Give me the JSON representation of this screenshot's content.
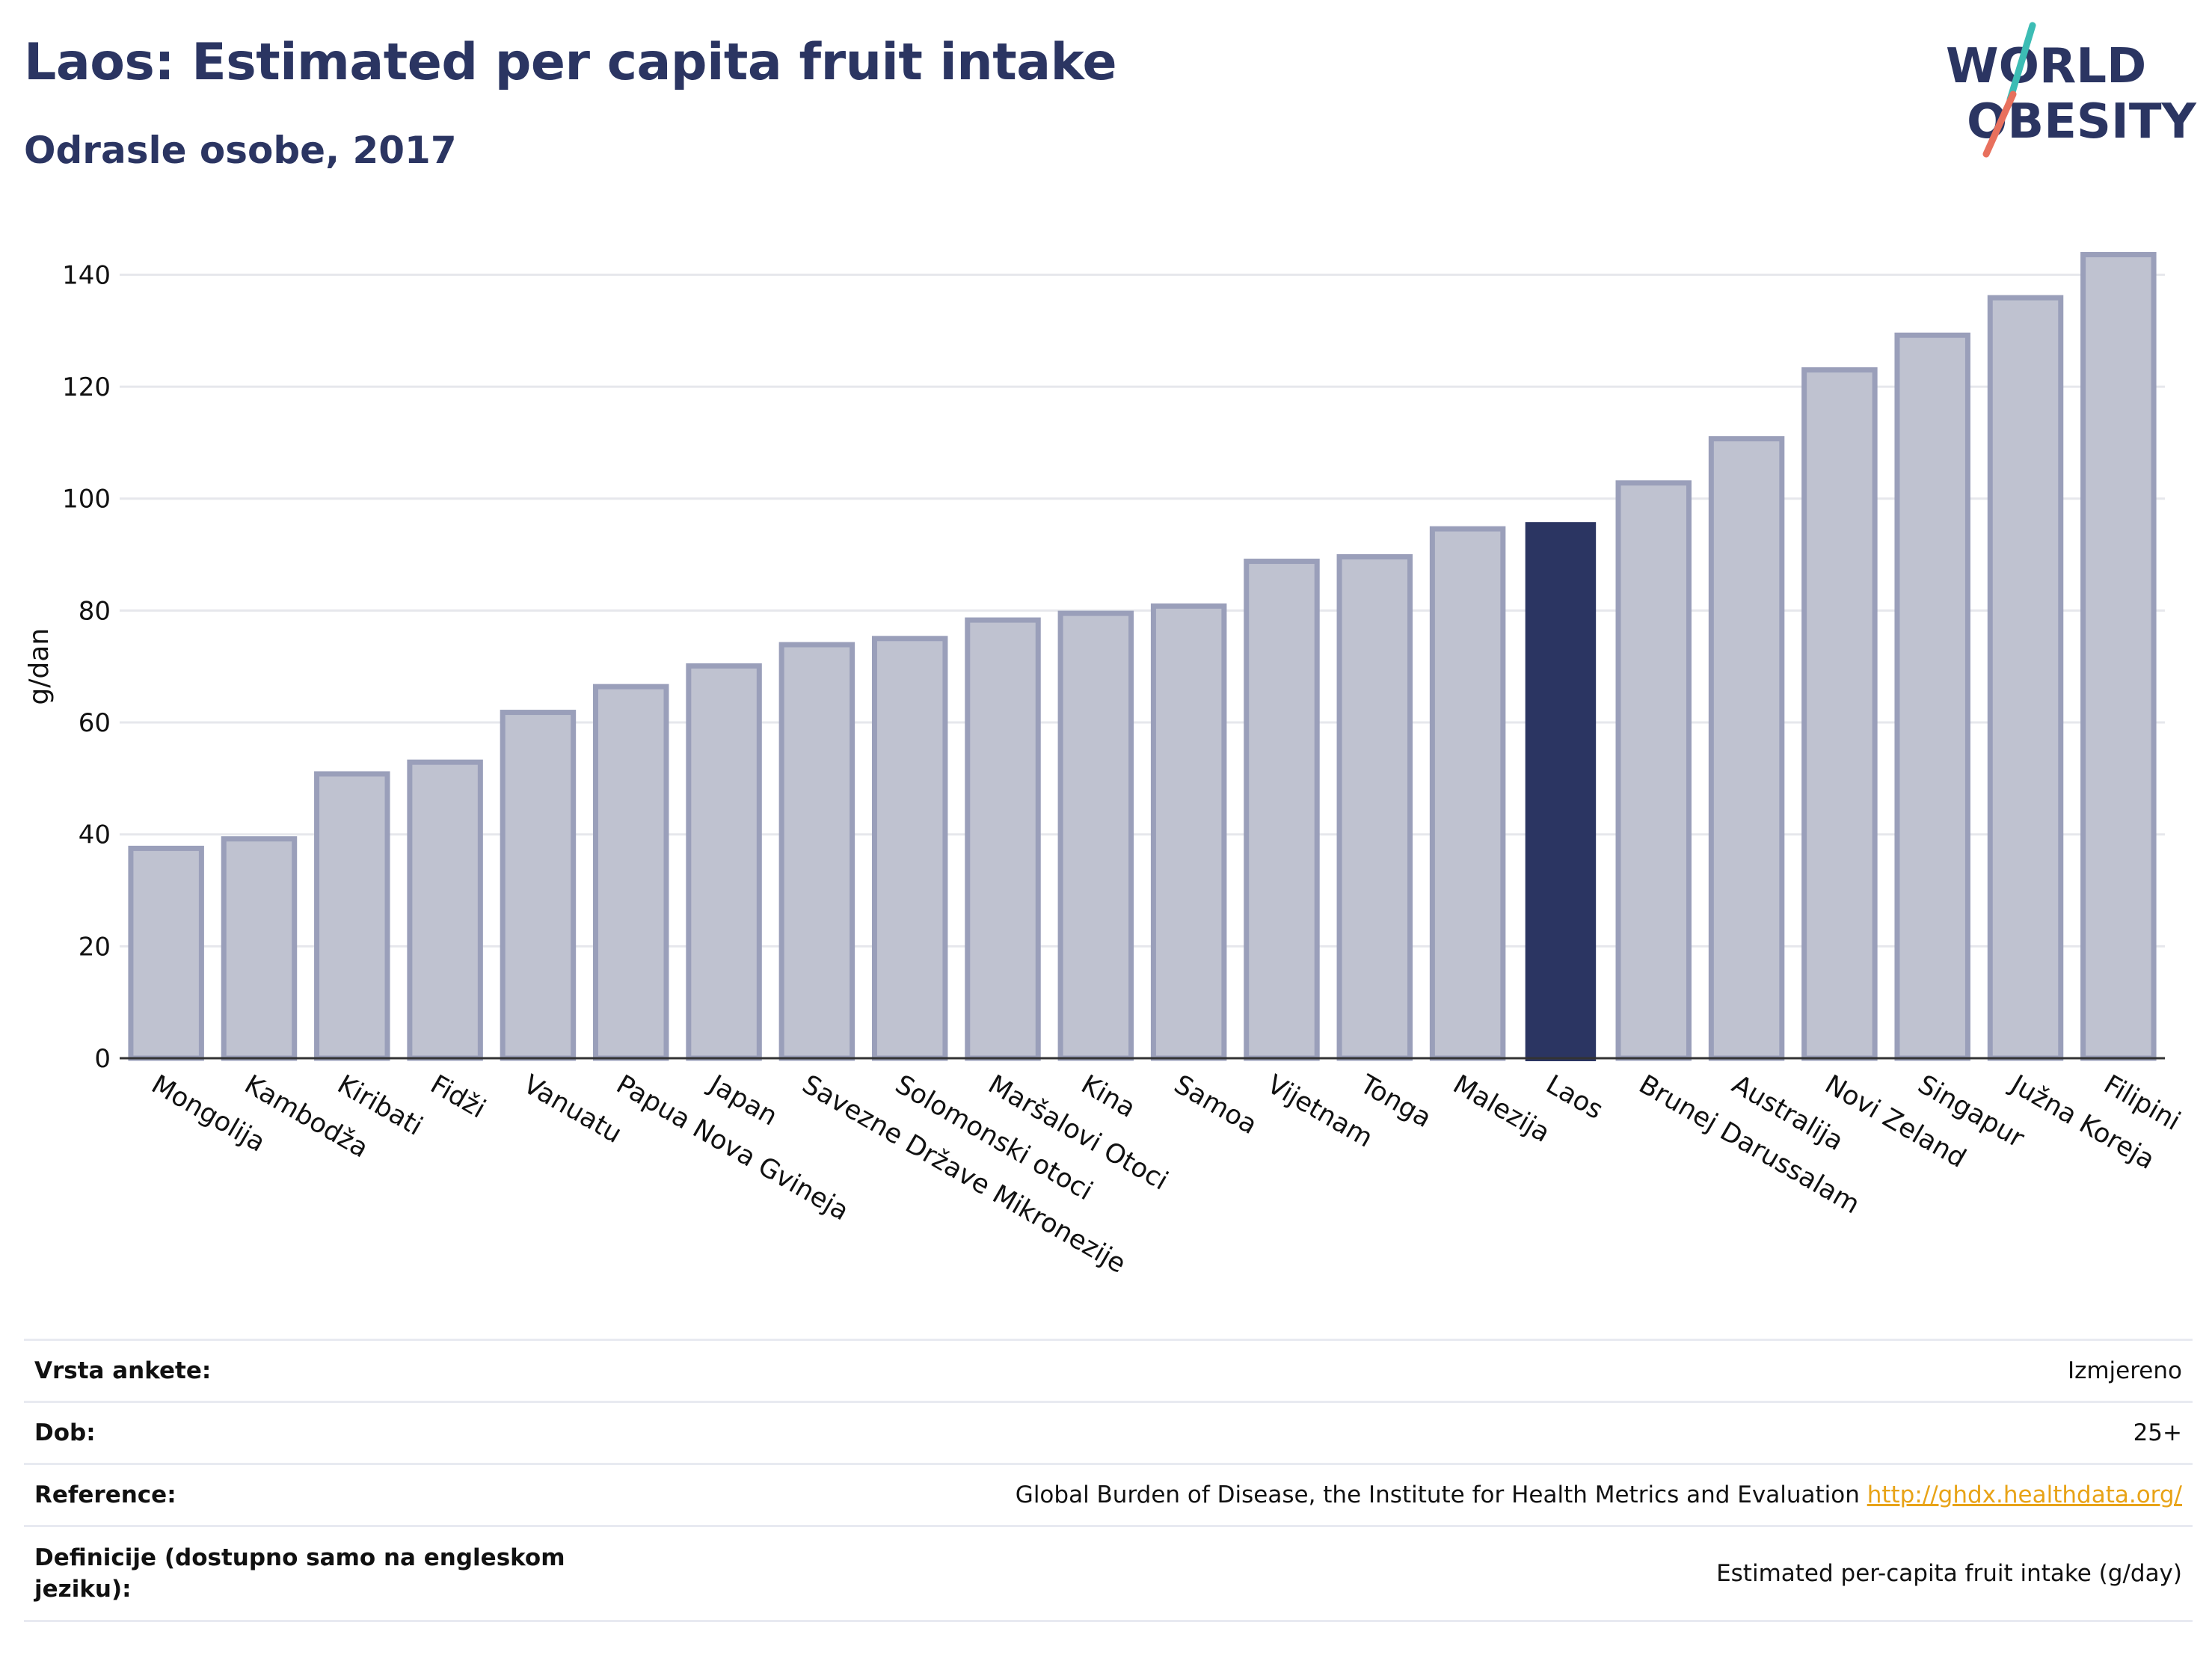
{
  "header": {
    "title": "Laos: Estimated per capita fruit intake",
    "subtitle": "Odrasle osobe, 2017"
  },
  "logo": {
    "line1": "WORLD",
    "line2": "OBESITY",
    "text_color": "#2b3562",
    "slash_colors": [
      "#3cbcb4",
      "#e8705d"
    ]
  },
  "chart_data": {
    "type": "bar",
    "ylabel": "g/dan",
    "ylim": [
      0,
      145
    ],
    "yticks": [
      0,
      20,
      40,
      60,
      80,
      100,
      120,
      140
    ],
    "grid": true,
    "highlight": "Laos",
    "colors": {
      "bar": "#bfc2d0",
      "bar_edge": "#9a9fba",
      "highlight": "#2b3562"
    },
    "categories": [
      "Mongolija",
      "Kambodža",
      "Kiribati",
      "Fidži",
      "Vanuatu",
      "Papua Nova Gvineja",
      "Japan",
      "Savezne Države Mikronezije",
      "Solomonski otoci",
      "Maršalovi Otoci",
      "Kina",
      "Samoa",
      "Vijetnam",
      "Tonga",
      "Malezija",
      "Laos",
      "Brunej Darussalam",
      "Australija",
      "Novi Zeland",
      "Singapur",
      "Južna Koreja",
      "Filipini"
    ],
    "values": [
      37.5,
      39.2,
      50.8,
      52.9,
      61.8,
      66.4,
      70.1,
      73.9,
      75.0,
      78.3,
      79.5,
      80.8,
      88.8,
      89.6,
      94.6,
      95.8,
      102.8,
      110.7,
      123.0,
      129.2,
      135.9,
      143.6
    ]
  },
  "info_table": [
    {
      "label": "Vrsta ankete:",
      "value": "Izmjereno"
    },
    {
      "label": "Dob:",
      "value": "25+"
    },
    {
      "label": "Reference:",
      "value": "Global Burden of Disease, the Institute for Health Metrics and Evaluation",
      "link": "http://ghdx.healthdata.org/"
    },
    {
      "label": "Definicije (dostupno samo na engleskom jeziku):",
      "value": "Estimated per-capita fruit intake (g/day)"
    }
  ]
}
